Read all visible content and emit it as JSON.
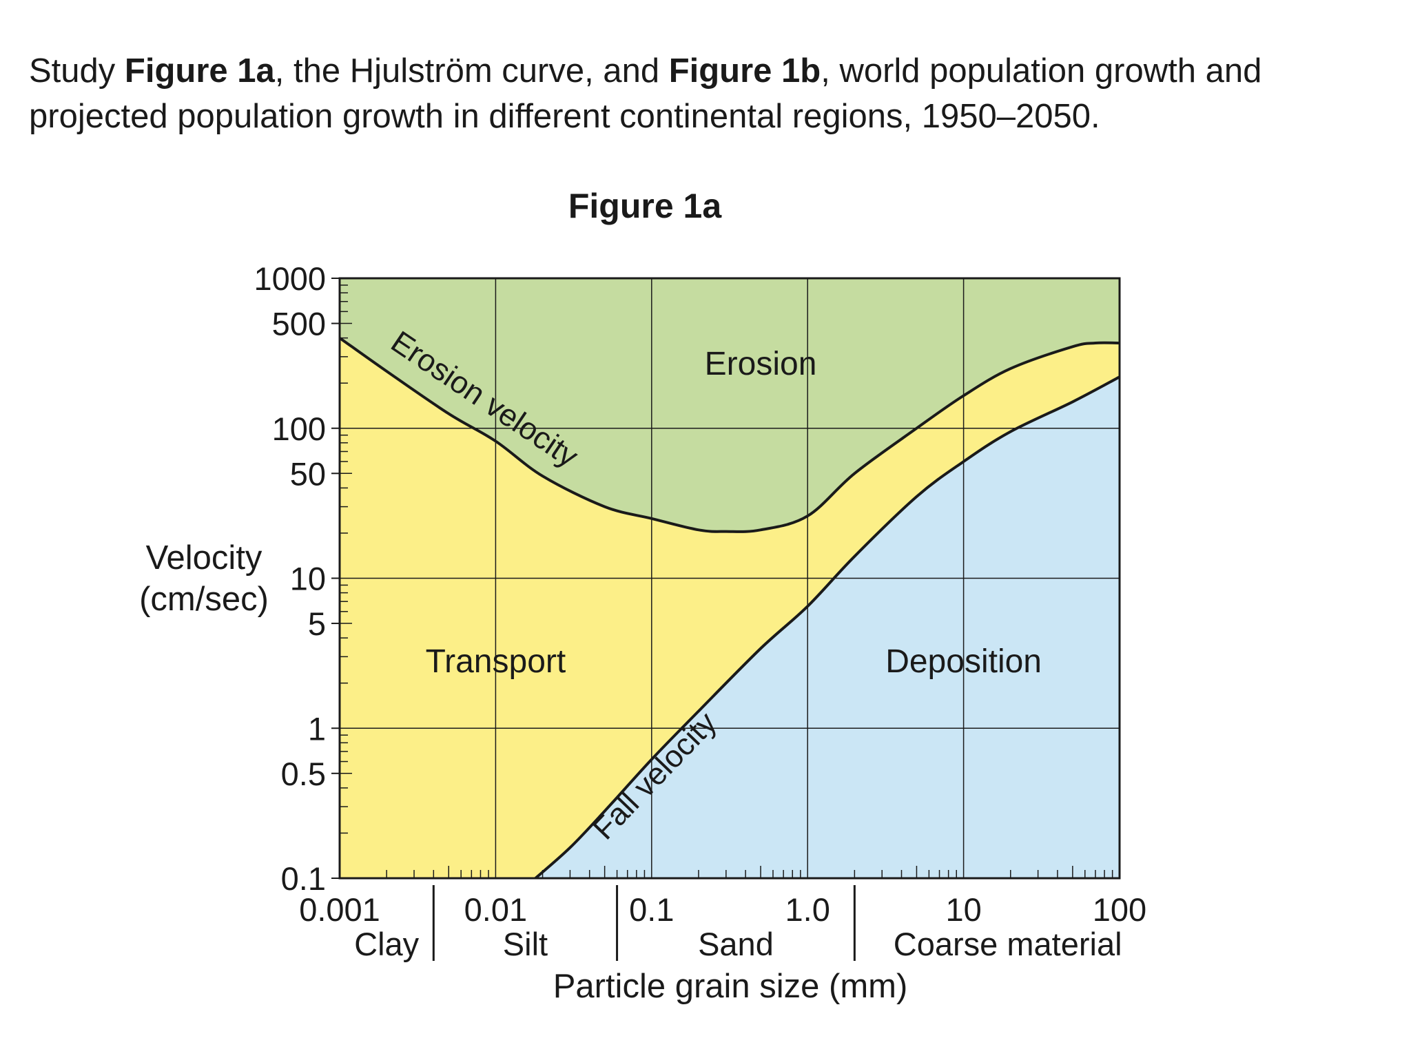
{
  "intro": {
    "part1": "Study ",
    "fig1a": "Figure 1a",
    "part2": ", the Hjulström curve, and ",
    "fig1b": "Figure 1b",
    "part3": ", world population growth and projected population growth in different continental regions, 1950–2050."
  },
  "chart_data": {
    "type": "area",
    "title": "Figure 1a",
    "xlabel": "Particle grain size (mm)",
    "ylabel": [
      "Velocity",
      "(cm/sec)"
    ],
    "x_scale": "log",
    "y_scale": "log",
    "xlim": [
      0.001,
      100
    ],
    "ylim": [
      0.1,
      1000
    ],
    "x_ticks": [
      {
        "value": 0.001,
        "label": "0.001"
      },
      {
        "value": 0.01,
        "label": "0.01"
      },
      {
        "value": 0.1,
        "label": "0.1"
      },
      {
        "value": 1,
        "label": "1.0"
      },
      {
        "value": 10,
        "label": "10"
      },
      {
        "value": 100,
        "label": "100"
      }
    ],
    "y_ticks": [
      {
        "value": 1000,
        "label": "1000"
      },
      {
        "value": 500,
        "label": "500"
      },
      {
        "value": 100,
        "label": "100"
      },
      {
        "value": 50,
        "label": "50"
      },
      {
        "value": 10,
        "label": "10"
      },
      {
        "value": 5,
        "label": "5"
      },
      {
        "value": 1,
        "label": "1"
      },
      {
        "value": 0.5,
        "label": "0.5"
      },
      {
        "value": 0.1,
        "label": "0.1"
      }
    ],
    "grain_classes": [
      {
        "label": "Clay",
        "from": 0.001,
        "to": 0.004
      },
      {
        "label": "Silt",
        "from": 0.004,
        "to": 0.06
      },
      {
        "label": "Sand",
        "from": 0.06,
        "to": 2
      },
      {
        "label": "Coarse material",
        "from": 2,
        "to": 100
      }
    ],
    "series": [
      {
        "name": "Erosion velocity",
        "points": [
          [
            0.001,
            400
          ],
          [
            0.002,
            240
          ],
          [
            0.005,
            125
          ],
          [
            0.01,
            82
          ],
          [
            0.02,
            48
          ],
          [
            0.05,
            30
          ],
          [
            0.1,
            25
          ],
          [
            0.2,
            21
          ],
          [
            0.3,
            20.5
          ],
          [
            0.5,
            21
          ],
          [
            1,
            26
          ],
          [
            2,
            50
          ],
          [
            5,
            100
          ],
          [
            10,
            165
          ],
          [
            20,
            250
          ],
          [
            50,
            350
          ],
          [
            70,
            370
          ],
          [
            100,
            370
          ]
        ]
      },
      {
        "name": "Fall velocity",
        "points": [
          [
            0.018,
            0.1
          ],
          [
            0.03,
            0.16
          ],
          [
            0.05,
            0.28
          ],
          [
            0.1,
            0.62
          ],
          [
            0.2,
            1.3
          ],
          [
            0.5,
            3.4
          ],
          [
            1,
            6.5
          ],
          [
            2,
            14
          ],
          [
            5,
            35
          ],
          [
            10,
            60
          ],
          [
            20,
            95
          ],
          [
            50,
            150
          ],
          [
            100,
            220
          ]
        ]
      }
    ],
    "regions": [
      {
        "label": "Erosion",
        "x": 0.5,
        "y": 270,
        "color": "#c5dca0"
      },
      {
        "label": "Transport",
        "x": 0.01,
        "y": 2.8,
        "color": "#fcef88"
      },
      {
        "label": "Deposition",
        "x": 10,
        "y": 2.8,
        "color": "#cbe6f5"
      }
    ]
  }
}
